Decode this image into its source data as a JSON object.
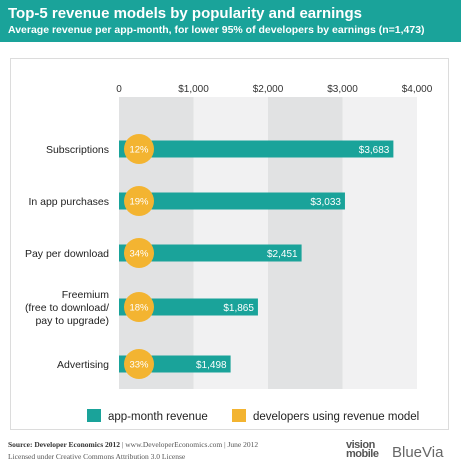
{
  "header": {
    "title": "Top-5 revenue models by popularity and earnings",
    "subtitle": "Average revenue per app-month, for lower 95% of developers by earnings (n=1,473)"
  },
  "chart_data": {
    "type": "bar",
    "orientation": "horizontal",
    "categories": [
      [
        "Subscriptions"
      ],
      [
        "In app purchases"
      ],
      [
        "Pay per download"
      ],
      [
        "Freemium",
        "(free to download/",
        "pay to upgrade)"
      ],
      [
        "Advertising"
      ]
    ],
    "series": [
      {
        "name": "app-month revenue",
        "values": [
          3683,
          3033,
          2451,
          1865,
          1498
        ],
        "labels": [
          "$3,683",
          "$3,033",
          "$2,451",
          "$1,865",
          "$1,498"
        ],
        "color": "#1aa39a"
      },
      {
        "name": "developers using revenue model",
        "values": [
          12,
          19,
          34,
          18,
          33
        ],
        "labels": [
          "12%",
          "19%",
          "34%",
          "18%",
          "33%"
        ],
        "color": "#f3b431"
      }
    ],
    "xlim": [
      0,
      4000
    ],
    "xticks": [
      0,
      1000,
      2000,
      3000,
      4000
    ],
    "xtick_labels": [
      "0",
      "$1,000",
      "$2,000",
      "$3,000",
      "$4,000"
    ],
    "grid": true,
    "legend_position": "bottom"
  },
  "footer": {
    "source_label": "Source: Developer Economics 2012",
    "source_rest": " | www.DeveloperEconomics.com | June 2012",
    "license": "Licensed under Creative Commons Attribution 3.0 License"
  },
  "logos": {
    "vision_line1": "vision",
    "vision_line2": "mobile",
    "bluevia": "BlueVia"
  },
  "colors": {
    "accent": "#1aa39a",
    "bubble": "#f3b431",
    "band_dark": "#e1e2e3",
    "band_light": "#f1f1f2"
  }
}
